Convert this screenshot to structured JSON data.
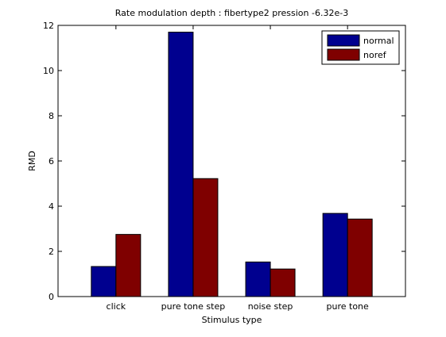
{
  "chart_data": {
    "type": "bar",
    "title": "Rate modulation depth : fibertype2 pression -6.32e-3",
    "xlabel": "Stimulus type",
    "ylabel": "RMD",
    "categories": [
      "click",
      "pure tone step",
      "noise step",
      "pure tone"
    ],
    "series": [
      {
        "name": "normal",
        "color": "#00008f",
        "values": [
          1.33,
          11.7,
          1.53,
          3.68
        ]
      },
      {
        "name": "noref",
        "color": "#7f0000",
        "values": [
          2.75,
          5.22,
          1.22,
          3.43
        ]
      }
    ],
    "ylim": [
      0,
      12
    ],
    "yticks": [
      0,
      2,
      4,
      6,
      8,
      10,
      12
    ],
    "grid": false,
    "legend_position": "top-right"
  }
}
